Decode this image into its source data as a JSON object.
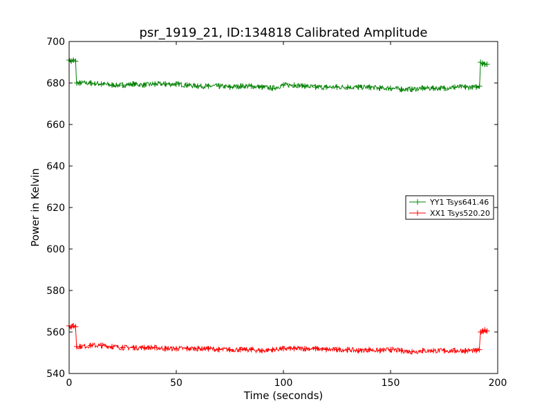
{
  "chart_data": {
    "type": "line",
    "title": "psr_1919_21, ID:134818 Calibrated Amplitude",
    "xlabel": "Time (seconds)",
    "ylabel": "Power in Kelvin",
    "xlim": [
      0,
      200
    ],
    "ylim": [
      540,
      700
    ],
    "xticks": [
      0,
      50,
      100,
      150,
      200
    ],
    "yticks": [
      540,
      560,
      580,
      600,
      620,
      640,
      660,
      680,
      700
    ],
    "grid": false,
    "legend_position": "center-right",
    "series": [
      {
        "name": "YY1 Tsys641.46",
        "color": "#008000",
        "marker": "+",
        "x": [
          0,
          1,
          2,
          3,
          3.5,
          5,
          10,
          15,
          20,
          25,
          30,
          35,
          40,
          45,
          50,
          55,
          60,
          65,
          70,
          75,
          80,
          85,
          90,
          95,
          100,
          105,
          110,
          115,
          120,
          125,
          130,
          135,
          140,
          145,
          150,
          155,
          160,
          165,
          170,
          175,
          180,
          185,
          190,
          191.5,
          192,
          193,
          194,
          195
        ],
        "y": [
          691,
          690.5,
          691,
          690.5,
          680,
          680,
          680,
          679.5,
          679,
          679,
          679.5,
          679,
          679.5,
          679.5,
          679.5,
          679,
          678.5,
          678.5,
          678.5,
          678,
          678.5,
          678.5,
          678,
          677.5,
          679,
          679,
          678.5,
          678,
          678,
          678,
          678,
          678,
          678,
          677.5,
          677.5,
          677,
          677,
          677.5,
          677.5,
          677.5,
          678,
          678,
          678,
          678.5,
          690,
          689.5,
          689,
          689
        ]
      },
      {
        "name": "XX1 Tsys520.20",
        "color": "#ff0000",
        "marker": "+",
        "x": [
          0,
          1,
          2,
          3,
          3.5,
          5,
          10,
          15,
          20,
          25,
          30,
          35,
          40,
          45,
          50,
          55,
          60,
          65,
          70,
          75,
          80,
          85,
          90,
          95,
          100,
          105,
          110,
          115,
          120,
          125,
          130,
          135,
          140,
          145,
          150,
          155,
          160,
          165,
          170,
          175,
          180,
          185,
          190,
          191.5,
          192,
          193,
          194,
          195
        ],
        "y": [
          563,
          562.5,
          563,
          562.5,
          553,
          553,
          553.5,
          553.5,
          553,
          552.5,
          552.5,
          552.5,
          552.5,
          552,
          552,
          552,
          552,
          552,
          551.5,
          551.5,
          551.5,
          551.5,
          551,
          551.5,
          552,
          552,
          552,
          552,
          551.5,
          551.5,
          551.5,
          551,
          551.5,
          551,
          551.5,
          551,
          550.5,
          551,
          551,
          551,
          551,
          551,
          551,
          551.5,
          560,
          560.5,
          561,
          560.5
        ]
      }
    ]
  }
}
